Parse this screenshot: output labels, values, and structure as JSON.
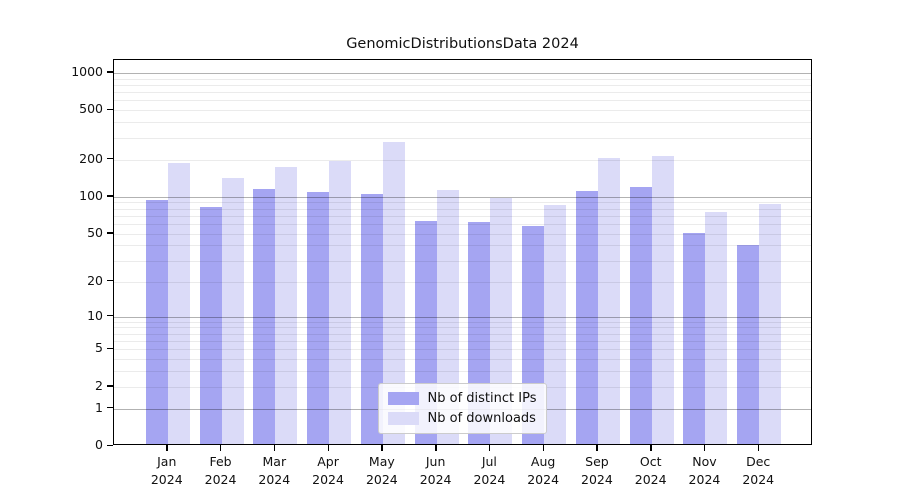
{
  "title": "GenomicDistributionsData 2024",
  "year": "2024",
  "months": [
    "Jan",
    "Feb",
    "Mar",
    "Apr",
    "May",
    "Jun",
    "Jul",
    "Aug",
    "Sep",
    "Oct",
    "Nov",
    "Dec"
  ],
  "colors": {
    "distinct_ips": "#a5a5f2",
    "downloads": "#dbdbf8",
    "grid_major": "#b5b5b5",
    "grid_minor": "#e9e9e9"
  },
  "legend": {
    "items": [
      {
        "label": "Nb of distinct IPs",
        "color": "#a5a5f2"
      },
      {
        "label": "Nb of downloads",
        "color": "#dbdbf8"
      }
    ]
  },
  "chart_data": {
    "type": "bar",
    "title": "GenomicDistributionsData 2024",
    "xlabel": "",
    "ylabel": "",
    "yscale": "log1p",
    "ylim": [
      0,
      1270
    ],
    "grid": true,
    "legend_position": "lower center",
    "y_ticks": [
      0,
      1,
      2,
      5,
      10,
      20,
      50,
      100,
      200,
      500,
      1000
    ],
    "categories": [
      "Jan 2024",
      "Feb 2024",
      "Mar 2024",
      "Apr 2024",
      "May 2024",
      "Jun 2024",
      "Jul 2024",
      "Aug 2024",
      "Sep 2024",
      "Oct 2024",
      "Nov 2024",
      "Dec 2024"
    ],
    "series": [
      {
        "name": "Nb of distinct IPs",
        "values": [
          91,
          80,
          112,
          105,
          101,
          61,
          60,
          56,
          108,
          115,
          49,
          39
        ]
      },
      {
        "name": "Nb of downloads",
        "values": [
          180,
          138,
          168,
          188,
          268,
          109,
          95,
          82,
          200,
          208,
          73,
          84
        ]
      }
    ]
  }
}
